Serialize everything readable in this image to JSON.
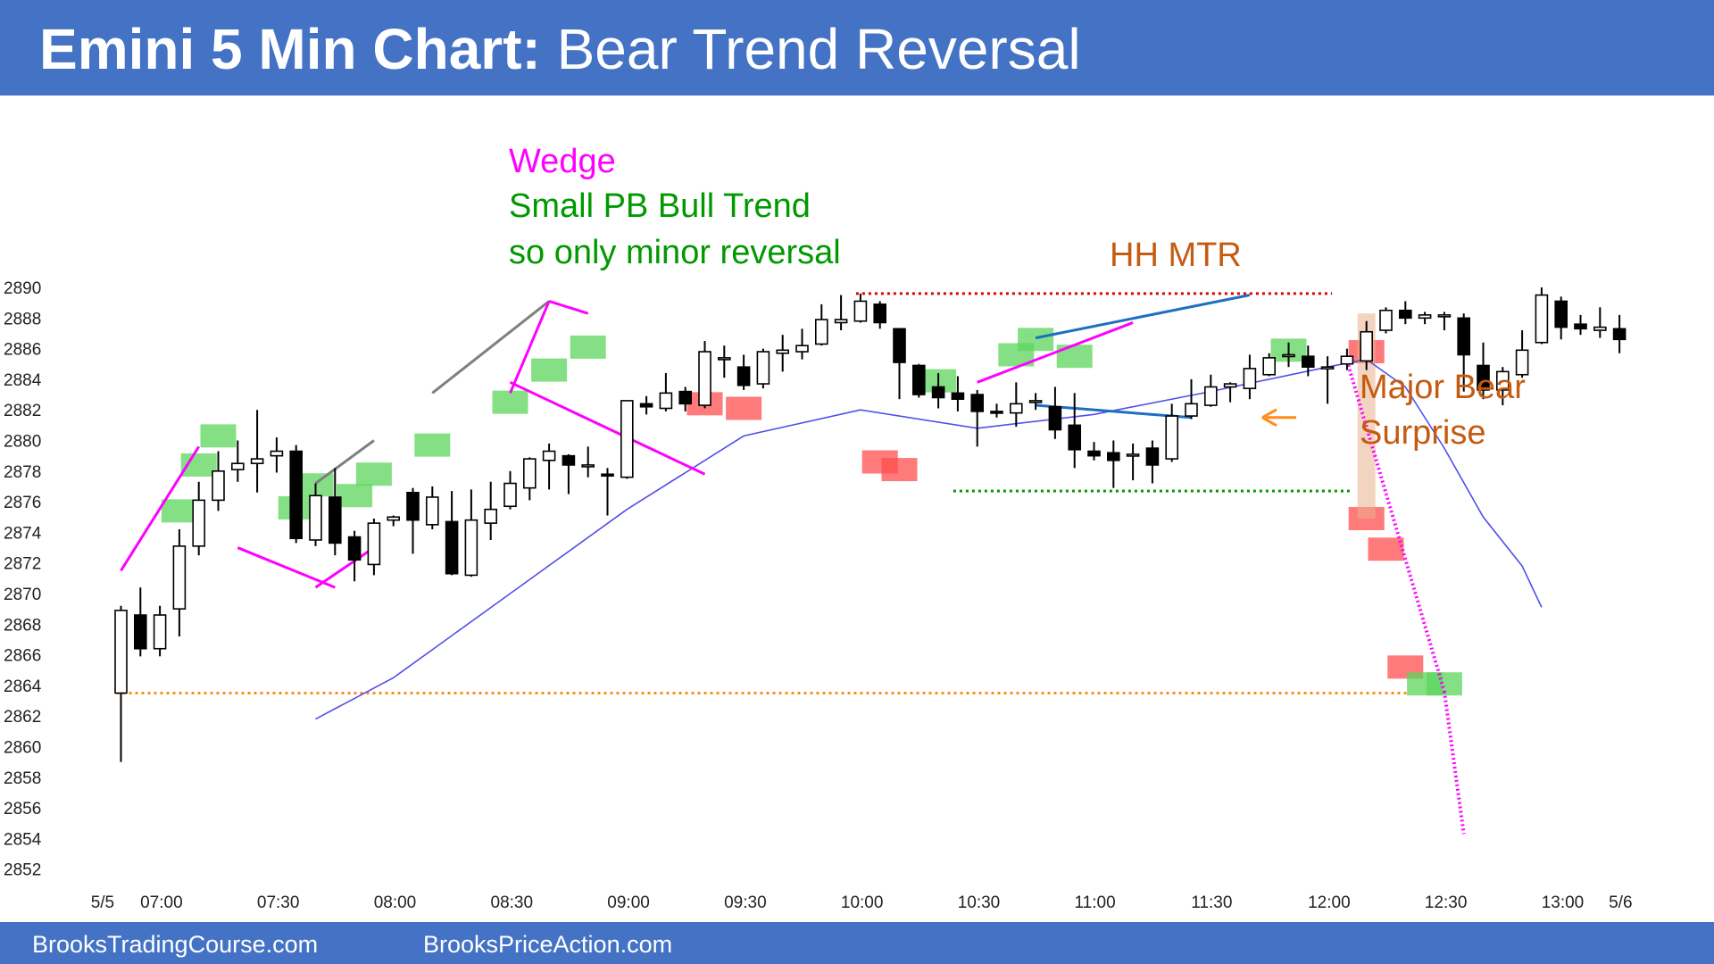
{
  "title": {
    "bold": "Emini 5 Min Chart:",
    "rest": " Bear Trend Reversal"
  },
  "footer": {
    "left": "BrooksTradingCourse.com",
    "right": "BrooksPriceAction.com"
  },
  "annotations": {
    "wedge": "Wedge",
    "small_pb_1": "Small PB Bull Trend",
    "small_pb_2": "so only minor reversal",
    "hh_mtr": "HH MTR",
    "major_1": "Major Bear",
    "major_2": "Surprise"
  },
  "colors": {
    "bar_bg": "#4472c4",
    "magenta": "#ff00ff",
    "green_text": "#009900",
    "orange_text": "#c55a11",
    "ema": "#5050e8",
    "trendline_blue": "#1f6fbf",
    "green_box": "#5cd65c",
    "red_box": "#ff4d4d",
    "arrow": "#ff8c1a"
  },
  "chart_data": {
    "type": "candlestick",
    "title": "Emini 5 Min Chart: Bear Trend Reversal",
    "ylim": [
      2851,
      2891
    ],
    "y_ticks": [
      2890,
      2888,
      2886,
      2884,
      2882,
      2880,
      2878,
      2876,
      2874,
      2872,
      2870,
      2868,
      2866,
      2864,
      2862,
      2860,
      2858,
      2856,
      2854,
      2852
    ],
    "x_ticks": [
      {
        "i": -1,
        "label": "5/5"
      },
      {
        "i": 2,
        "label": "07:00"
      },
      {
        "i": 8,
        "label": "07:30"
      },
      {
        "i": 14,
        "label": "08:00"
      },
      {
        "i": 20,
        "label": "08:30"
      },
      {
        "i": 26,
        "label": "09:00"
      },
      {
        "i": 32,
        "label": "09:30"
      },
      {
        "i": 38,
        "label": "10:00"
      },
      {
        "i": 44,
        "label": "10:30"
      },
      {
        "i": 50,
        "label": "11:00"
      },
      {
        "i": 56,
        "label": "11:30"
      },
      {
        "i": 62,
        "label": "12:00"
      },
      {
        "i": 68,
        "label": "12:30"
      },
      {
        "i": 74,
        "label": "13:00"
      },
      {
        "i": 77,
        "label": "5/6"
      }
    ],
    "candles": [
      [
        2863.5,
        2868.9,
        2859,
        2869.2
      ],
      [
        2868.6,
        2866.4,
        2865.9,
        2870.4
      ],
      [
        2866.4,
        2868.6,
        2865.9,
        2869.2
      ],
      [
        2869,
        2873.1,
        2867.2,
        2874.2
      ],
      [
        2873.1,
        2876.1,
        2872.5,
        2877.3
      ],
      [
        2876.1,
        2878,
        2875.4,
        2879.3
      ],
      [
        2878.1,
        2878.5,
        2877.3,
        2880
      ],
      [
        2878.5,
        2878.8,
        2876.6,
        2882
      ],
      [
        2879,
        2879.3,
        2877.9,
        2880.2
      ],
      [
        2879.3,
        2873.6,
        2873.3,
        2879.7
      ],
      [
        2873.5,
        2876.4,
        2873.1,
        2877.2
      ],
      [
        2876.3,
        2873.3,
        2872.5,
        2878.2
      ],
      [
        2873.7,
        2872.2,
        2870.8,
        2874.1
      ],
      [
        2871.9,
        2874.6,
        2871.2,
        2874.9
      ],
      [
        2874.8,
        2875,
        2874.4,
        2875.1
      ],
      [
        2876.6,
        2874.8,
        2872.6,
        2876.9
      ],
      [
        2874.5,
        2876.3,
        2874.2,
        2877
      ],
      [
        2874.7,
        2871.3,
        2871.2,
        2876.7
      ],
      [
        2871.2,
        2874.8,
        2871.1,
        2876.8
      ],
      [
        2874.6,
        2875.5,
        2873.5,
        2877.3
      ],
      [
        2875.7,
        2877.2,
        2875.5,
        2878
      ],
      [
        2876.9,
        2878.8,
        2876.1,
        2878.9
      ],
      [
        2878.7,
        2879.3,
        2876.8,
        2879.8
      ],
      [
        2879,
        2878.4,
        2876.5,
        2879.1
      ],
      [
        2878.4,
        2878.4,
        2877.6,
        2879.6
      ],
      [
        2877.8,
        2877.7,
        2875.1,
        2878.2
      ],
      [
        2877.6,
        2882.6,
        2877.5,
        2882.6
      ],
      [
        2882.4,
        2882.2,
        2881.7,
        2882.9
      ],
      [
        2882.1,
        2883.1,
        2881.9,
        2884.4
      ],
      [
        2883.2,
        2882.4,
        2881.9,
        2883.5
      ],
      [
        2882.3,
        2885.8,
        2882.1,
        2886.5
      ],
      [
        2885.4,
        2885.4,
        2884.1,
        2886.2
      ],
      [
        2884.8,
        2883.6,
        2883.3,
        2885.6
      ],
      [
        2883.7,
        2885.8,
        2883.4,
        2886
      ],
      [
        2885.7,
        2885.9,
        2884.5,
        2886.9
      ],
      [
        2885.8,
        2886.2,
        2885.3,
        2887.3
      ],
      [
        2886.3,
        2887.9,
        2886.2,
        2888.9
      ],
      [
        2887.7,
        2887.9,
        2887.2,
        2889.5
      ],
      [
        2887.8,
        2889.1,
        2887.7,
        2889.6
      ],
      [
        2888.9,
        2887.7,
        2887.3,
        2889.1
      ],
      [
        2887.3,
        2885.1,
        2882.7,
        2887.3
      ],
      [
        2884.9,
        2883,
        2882.8,
        2885
      ],
      [
        2883.5,
        2882.8,
        2882.1,
        2884.4
      ],
      [
        2883.1,
        2882.7,
        2881.9,
        2884.2
      ],
      [
        2883,
        2881.9,
        2879.6,
        2883.3
      ],
      [
        2881.9,
        2881.8,
        2881.5,
        2882.4
      ],
      [
        2881.8,
        2882.4,
        2880.9,
        2883.8
      ],
      [
        2882.6,
        2882.6,
        2882,
        2883.1
      ],
      [
        2882.2,
        2880.7,
        2880.1,
        2883.5
      ],
      [
        2881,
        2879.4,
        2878.2,
        2883.1
      ],
      [
        2879.3,
        2879,
        2878.7,
        2879.9
      ],
      [
        2879.2,
        2878.7,
        2876.9,
        2880
      ],
      [
        2879.1,
        2879.1,
        2877.4,
        2879.8
      ],
      [
        2879.5,
        2878.4,
        2877.2,
        2880
      ],
      [
        2878.8,
        2881.6,
        2878.6,
        2882.4
      ],
      [
        2881.6,
        2882.4,
        2881.4,
        2884
      ],
      [
        2882.3,
        2883.5,
        2882.2,
        2884.3
      ],
      [
        2883.5,
        2883.7,
        2882.5,
        2883.8
      ],
      [
        2883.4,
        2884.7,
        2882.7,
        2885.6
      ],
      [
        2884.3,
        2885.4,
        2884.2,
        2885.7
      ],
      [
        2885.5,
        2885.6,
        2884.8,
        2886.4
      ],
      [
        2885.5,
        2884.8,
        2884.2,
        2886.2
      ],
      [
        2884.8,
        2884.8,
        2882.4,
        2885.5
      ],
      [
        2885,
        2885.5,
        2884.6,
        2886
      ],
      [
        2885.2,
        2887.1,
        2884.6,
        2887.8
      ],
      [
        2887.2,
        2888.5,
        2887,
        2888.7
      ],
      [
        2888.5,
        2888,
        2887.6,
        2889.1
      ],
      [
        2888,
        2888.2,
        2887.6,
        2888.4
      ],
      [
        2888.1,
        2888.2,
        2887.2,
        2888.4
      ],
      [
        2888,
        2885.6,
        2883.2,
        2888.3
      ],
      [
        2884.9,
        2883.3,
        2882.7,
        2886.4
      ],
      [
        2883.3,
        2884.5,
        2882.3,
        2884.8
      ],
      [
        2884.3,
        2885.9,
        2884.1,
        2887.2
      ],
      [
        2886.4,
        2889.5,
        2886.3,
        2890
      ],
      [
        2889.1,
        2887.4,
        2886.6,
        2889.4
      ],
      [
        2887.6,
        2887.3,
        2886.9,
        2888.2
      ],
      [
        2887.2,
        2887.4,
        2886.7,
        2888.7
      ],
      [
        2887.3,
        2886.6,
        2885.7,
        2888.2
      ]
    ],
    "ema": [
      [
        10,
        2861.8
      ],
      [
        14,
        2864.5
      ],
      [
        20,
        2870
      ],
      [
        26,
        2875.5
      ],
      [
        32,
        2880.3
      ],
      [
        38,
        2882
      ],
      [
        44,
        2880.8
      ],
      [
        50,
        2881.7
      ],
      [
        56,
        2883.2
      ],
      [
        62,
        2884.8
      ],
      [
        64,
        2885.3
      ],
      [
        66,
        2883.5
      ],
      [
        68,
        2879.5
      ],
      [
        70,
        2875
      ],
      [
        72,
        2871.8
      ],
      [
        73,
        2869.1
      ]
    ],
    "levels": [
      {
        "price": 2863.5,
        "from": 0,
        "to": 66
      },
      {
        "price": 2889.6,
        "from": 38,
        "to": 62
      },
      {
        "price": 2876.7,
        "from": 43,
        "to": 63
      }
    ],
    "annotations": [
      "Wedge",
      "Small PB Bull Trend",
      "so only minor reversal",
      "HH MTR",
      "Major Bear",
      "Surprise"
    ]
  }
}
